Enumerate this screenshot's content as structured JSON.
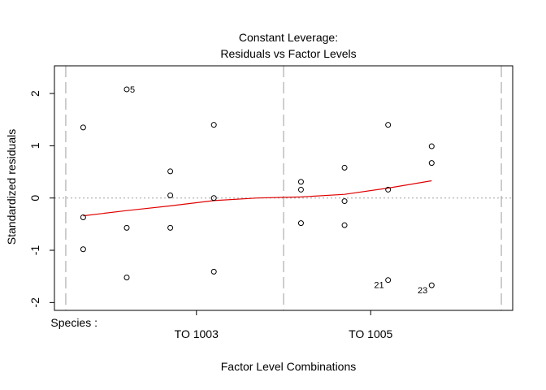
{
  "chart_data": {
    "type": "scatter",
    "title_line1": "Constant Leverage:",
    "title_line2": "Residuals vs Factor Levels",
    "xlabel": "Factor Level Combinations",
    "ylabel": "Standardized residuals",
    "factor_label": "Species :",
    "x_ticks": [
      {
        "label": "TO 1003",
        "x": 2
      },
      {
        "label": "TO 1005",
        "x": 4
      }
    ],
    "xlim": [
      0.37,
      5.63
    ],
    "ylim": [
      -2.15,
      2.53
    ],
    "y_ticks": [
      -2,
      -1,
      0,
      1,
      2
    ],
    "y_tick_labels": [
      "-2",
      "-1",
      "0",
      "1",
      "2"
    ],
    "group_separators": [
      0.5,
      3.0,
      5.5
    ],
    "hline": 0,
    "points": [
      {
        "x": 0.7,
        "y": 1.35
      },
      {
        "x": 0.7,
        "y": -0.37
      },
      {
        "x": 0.7,
        "y": -0.98
      },
      {
        "x": 1.2,
        "y": 2.08,
        "label": "5"
      },
      {
        "x": 1.2,
        "y": -0.57
      },
      {
        "x": 1.2,
        "y": -1.52
      },
      {
        "x": 1.7,
        "y": 0.51
      },
      {
        "x": 1.7,
        "y": 0.05
      },
      {
        "x": 1.7,
        "y": -0.57
      },
      {
        "x": 2.2,
        "y": 1.4
      },
      {
        "x": 2.2,
        "y": 0.0
      },
      {
        "x": 2.2,
        "y": -1.41
      },
      {
        "x": 3.2,
        "y": 0.31
      },
      {
        "x": 3.2,
        "y": 0.16
      },
      {
        "x": 3.2,
        "y": -0.48
      },
      {
        "x": 3.7,
        "y": 0.58
      },
      {
        "x": 3.7,
        "y": -0.06
      },
      {
        "x": 3.7,
        "y": -0.52
      },
      {
        "x": 4.2,
        "y": 1.4
      },
      {
        "x": 4.2,
        "y": 0.16
      },
      {
        "x": 4.2,
        "y": -1.57,
        "label": "21"
      },
      {
        "x": 4.7,
        "y": 0.99
      },
      {
        "x": 4.7,
        "y": 0.67
      },
      {
        "x": 4.7,
        "y": -1.67,
        "label": "23"
      }
    ],
    "smooth_line": {
      "x": [
        0.7,
        1.2,
        1.7,
        2.2,
        2.7,
        3.2,
        3.7,
        4.2,
        4.7
      ],
      "y": [
        -0.34,
        -0.24,
        -0.15,
        -0.05,
        0.0,
        0.02,
        0.07,
        0.19,
        0.33
      ]
    },
    "colors": {
      "smooth": "#e00000",
      "separator": "#bebebe",
      "hline": "#a0a0a0",
      "axis": "#000000"
    }
  }
}
